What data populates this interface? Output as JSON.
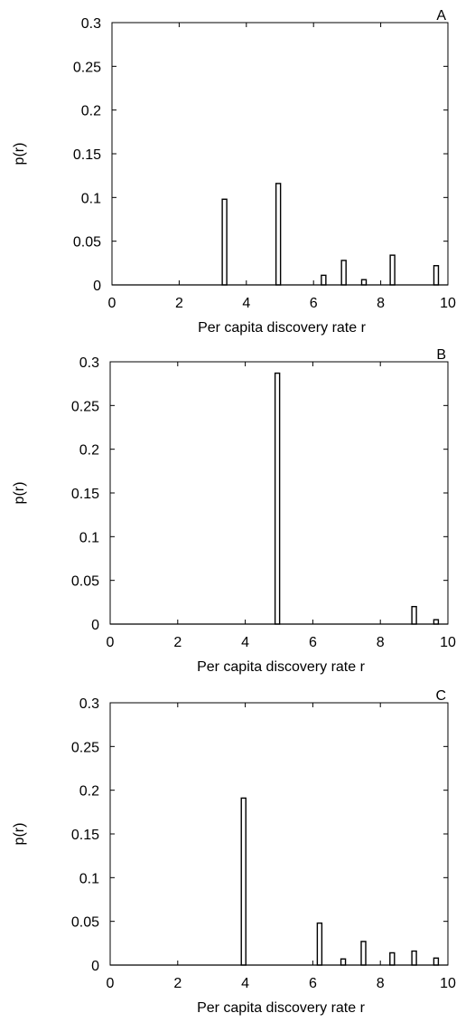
{
  "chart_data": [
    {
      "type": "bar",
      "panel_label": "A",
      "xlabel": "Per capita discovery rate r",
      "ylabel": "p(r)",
      "xlim": [
        0,
        10
      ],
      "ylim": [
        0,
        0.3
      ],
      "xticks": [
        "0",
        "2",
        "4",
        "6",
        "8",
        "10"
      ],
      "yticks": [
        "0",
        "0.05",
        "0.1",
        "0.15",
        "0.2",
        "0.25",
        "0.3"
      ],
      "grid": false,
      "x": [
        3.35,
        4.95,
        6.3,
        6.9,
        7.5,
        8.35,
        9.65
      ],
      "values": [
        0.098,
        0.116,
        0.011,
        0.028,
        0.006,
        0.034,
        0.022
      ]
    },
    {
      "type": "bar",
      "panel_label": "B",
      "xlabel": "Per capita discovery rate r",
      "ylabel": "p(r)",
      "xlim": [
        0,
        10
      ],
      "ylim": [
        0,
        0.3
      ],
      "xticks": [
        "0",
        "2",
        "4",
        "6",
        "8",
        "10"
      ],
      "yticks": [
        "0",
        "0.05",
        "0.1",
        "0.15",
        "0.2",
        "0.25",
        "0.3"
      ],
      "grid": false,
      "x": [
        4.95,
        9.0,
        9.65
      ],
      "values": [
        0.287,
        0.02,
        0.005
      ]
    },
    {
      "type": "bar",
      "panel_label": "C",
      "xlabel": "Per capita discovery rate r",
      "ylabel": "p(r)",
      "xlim": [
        0,
        10
      ],
      "ylim": [
        0,
        0.3
      ],
      "xticks": [
        "0",
        "2",
        "4",
        "6",
        "8",
        "10"
      ],
      "yticks": [
        "0",
        "0.05",
        "0.1",
        "0.15",
        "0.2",
        "0.25",
        "0.3"
      ],
      "grid": false,
      "x": [
        3.95,
        6.2,
        6.9,
        7.5,
        8.35,
        9.0,
        9.65
      ],
      "values": [
        0.191,
        0.048,
        0.007,
        0.027,
        0.014,
        0.016,
        0.008
      ]
    }
  ]
}
